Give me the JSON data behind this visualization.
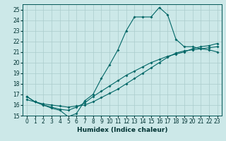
{
  "xlabel": "Humidex (Indice chaleur)",
  "ylabel": "",
  "xlim": [
    -0.5,
    23.5
  ],
  "ylim": [
    15,
    25.5
  ],
  "xticks": [
    0,
    1,
    2,
    3,
    4,
    5,
    6,
    7,
    8,
    9,
    10,
    11,
    12,
    13,
    14,
    15,
    16,
    17,
    18,
    19,
    20,
    21,
    22,
    23
  ],
  "yticks": [
    15,
    16,
    17,
    18,
    19,
    20,
    21,
    22,
    23,
    24,
    25
  ],
  "bg_color": "#cce8e8",
  "line_color": "#006666",
  "grid_color": "#aacccc",
  "line1_x": [
    0,
    1,
    2,
    3,
    4,
    5,
    6,
    7,
    8,
    9,
    10,
    11,
    12,
    13,
    14,
    15,
    16,
    17,
    18,
    19,
    20,
    21,
    22,
    23
  ],
  "line1_y": [
    16.8,
    16.3,
    16.0,
    15.7,
    15.5,
    14.9,
    15.2,
    16.4,
    17.0,
    18.5,
    19.8,
    21.2,
    23.0,
    24.3,
    24.3,
    24.3,
    25.2,
    24.5,
    22.2,
    21.5,
    21.5,
    21.3,
    21.2,
    21.0
  ],
  "line2_x": [
    0,
    1,
    2,
    3,
    4,
    5,
    6,
    7,
    8,
    9,
    10,
    11,
    12,
    13,
    14,
    15,
    16,
    17,
    18,
    19,
    20,
    21,
    22,
    23
  ],
  "line2_y": [
    16.8,
    16.3,
    16.0,
    15.8,
    15.6,
    15.5,
    15.8,
    16.2,
    16.8,
    17.3,
    17.8,
    18.3,
    18.8,
    19.2,
    19.6,
    20.0,
    20.3,
    20.6,
    20.8,
    21.0,
    21.3,
    21.5,
    21.6,
    21.8
  ],
  "line3_x": [
    0,
    1,
    2,
    3,
    4,
    5,
    6,
    7,
    8,
    9,
    10,
    11,
    12,
    13,
    14,
    15,
    16,
    17,
    18,
    19,
    20,
    21,
    22,
    23
  ],
  "line3_y": [
    16.5,
    16.3,
    16.1,
    16.0,
    15.9,
    15.8,
    15.9,
    16.0,
    16.3,
    16.7,
    17.1,
    17.5,
    18.0,
    18.5,
    19.0,
    19.5,
    20.0,
    20.5,
    20.9,
    21.1,
    21.2,
    21.3,
    21.4,
    21.5
  ]
}
